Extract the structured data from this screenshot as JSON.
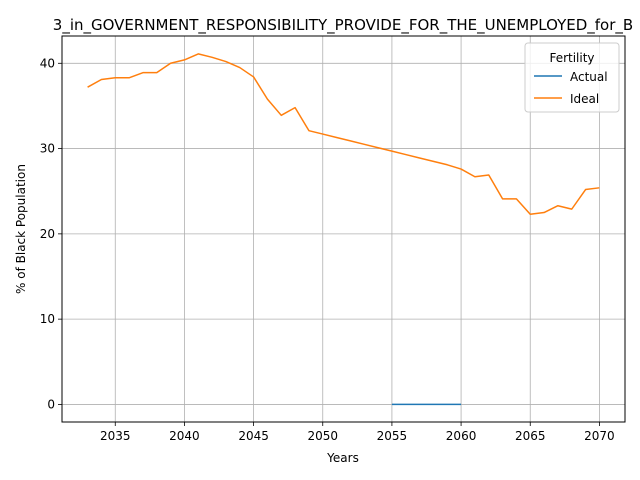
{
  "chart_data": {
    "type": "line",
    "title": "3_in_GOVERNMENT_RESPONSIBILITY_PROVIDE_FOR_THE_UNEMPLOYED_for_B",
    "xlabel": "Years",
    "ylabel": "% of Black Population",
    "xlim": [
      2031.15,
      2071.85
    ],
    "ylim": [
      -2.06,
      43.2
    ],
    "xticks": [
      2035,
      2040,
      2045,
      2050,
      2055,
      2060,
      2065,
      2070
    ],
    "yticks": [
      0,
      10,
      20,
      30,
      40
    ],
    "grid": true,
    "legend": {
      "title": "Fertility",
      "placement": "top-right"
    },
    "series": [
      {
        "name": "Actual",
        "color": "#1f77b4",
        "x": [
          2055,
          2056,
          2057,
          2058,
          2059,
          2060
        ],
        "y": [
          0,
          0,
          0,
          0,
          0,
          0
        ]
      },
      {
        "name": "Ideal",
        "color": "#ff7f0e",
        "x": [
          2033,
          2034,
          2035,
          2036,
          2037,
          2038,
          2039,
          2040,
          2041,
          2042,
          2043,
          2044,
          2045,
          2046,
          2047,
          2048,
          2049,
          2050,
          2051,
          2052,
          2053,
          2054,
          2055,
          2056,
          2057,
          2058,
          2059,
          2060,
          2061,
          2062,
          2063,
          2064,
          2065,
          2066,
          2067,
          2068,
          2069,
          2070
        ],
        "y": [
          37.2,
          38.1,
          38.3,
          38.3,
          38.9,
          38.9,
          40.0,
          40.4,
          41.1,
          40.7,
          40.2,
          39.5,
          38.4,
          35.8,
          33.9,
          34.8,
          32.1,
          31.7,
          31.3,
          30.9,
          30.5,
          30.1,
          29.7,
          29.3,
          28.9,
          28.5,
          28.1,
          27.6,
          26.7,
          26.9,
          24.1,
          24.1,
          22.3,
          22.5,
          23.3,
          22.9,
          25.2,
          25.4
        ]
      }
    ]
  }
}
